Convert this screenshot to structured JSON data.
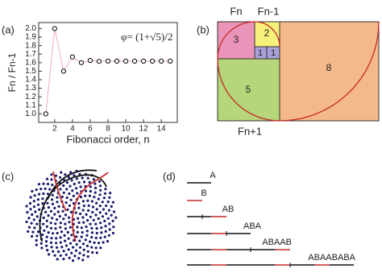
{
  "chart_data": {
    "type": "scatter",
    "panel_label": "(a)",
    "x_label": "Fibonacci order, n",
    "y_label": "Fn / Fn-1",
    "annotation": "φ= (1+√5)/2",
    "x": [
      1,
      2,
      3,
      4,
      5,
      6,
      7,
      8,
      9,
      10,
      11,
      12,
      13,
      14,
      15
    ],
    "values": [
      1,
      2,
      1.5,
      1.667,
      1.6,
      1.625,
      1.615,
      1.619,
      1.618,
      1.618,
      1.618,
      1.618,
      1.618,
      1.618,
      1.618
    ],
    "line_color": "#f2b8c6",
    "marker_color": "#000000",
    "xlim": [
      0.2,
      15.8
    ],
    "xticks": [
      2,
      4,
      6,
      8,
      10,
      12,
      14
    ],
    "ylim": [
      0.9,
      2.07
    ],
    "yticks": [
      {
        "value": 1,
        "label": "1.0"
      },
      1.1,
      1.2,
      1.3,
      1.4,
      1.5,
      1.6,
      1.7,
      1.8,
      1.9,
      {
        "value": 2,
        "label": "2.0"
      }
    ]
  },
  "panel_b": {
    "label": "(b)",
    "top_left": "Fn",
    "top_mid": "Fn-1",
    "bottom": "Fn+1",
    "squares": [
      "3",
      "2",
      "1",
      "1",
      "5",
      "8"
    ]
  },
  "panel_c": {
    "label": "(c)"
  },
  "panel_d": {
    "label": "(d)",
    "words": [
      "A",
      "B",
      "AB",
      "ABA",
      "ABAAB",
      "ABAABABA"
    ]
  }
}
